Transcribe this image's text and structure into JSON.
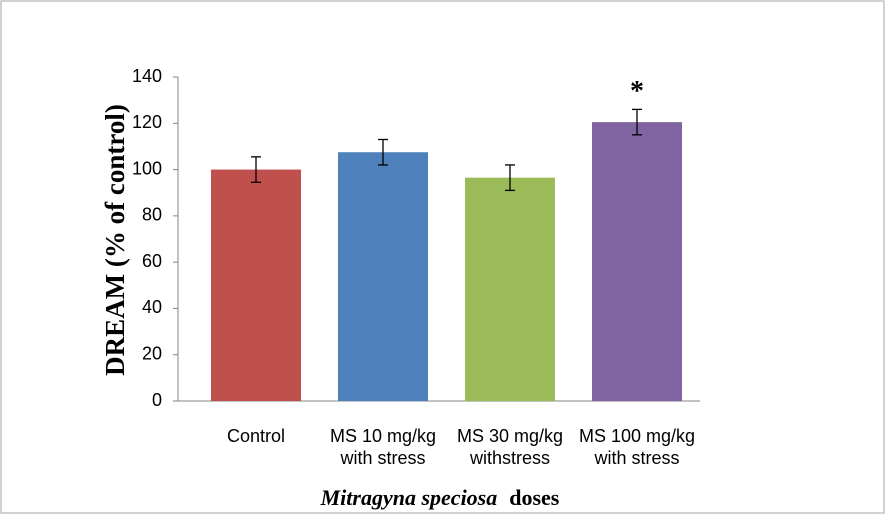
{
  "chart_data": {
    "type": "bar",
    "ylabel": "DREAM (% of control)",
    "xlabel_italic": "Mitragyna speciosa",
    "xlabel": "doses",
    "categories": [
      "Control",
      "MS 10 mg/kg with stress",
      "MS 30 mg/kg withstress",
      "MS 100 mg/kg with stress"
    ],
    "values": [
      100,
      107.5,
      96.5,
      120.5
    ],
    "errors": [
      5.5,
      5.5,
      5.5,
      5.5
    ],
    "colors": [
      "#c0504d",
      "#4f81bd",
      "#9bbb59",
      "#8064a2"
    ],
    "annotation": "*",
    "ylim": [
      0,
      140
    ],
    "yticks": [
      0,
      20,
      40,
      60,
      80,
      100,
      120,
      140
    ],
    "grid": false
  }
}
